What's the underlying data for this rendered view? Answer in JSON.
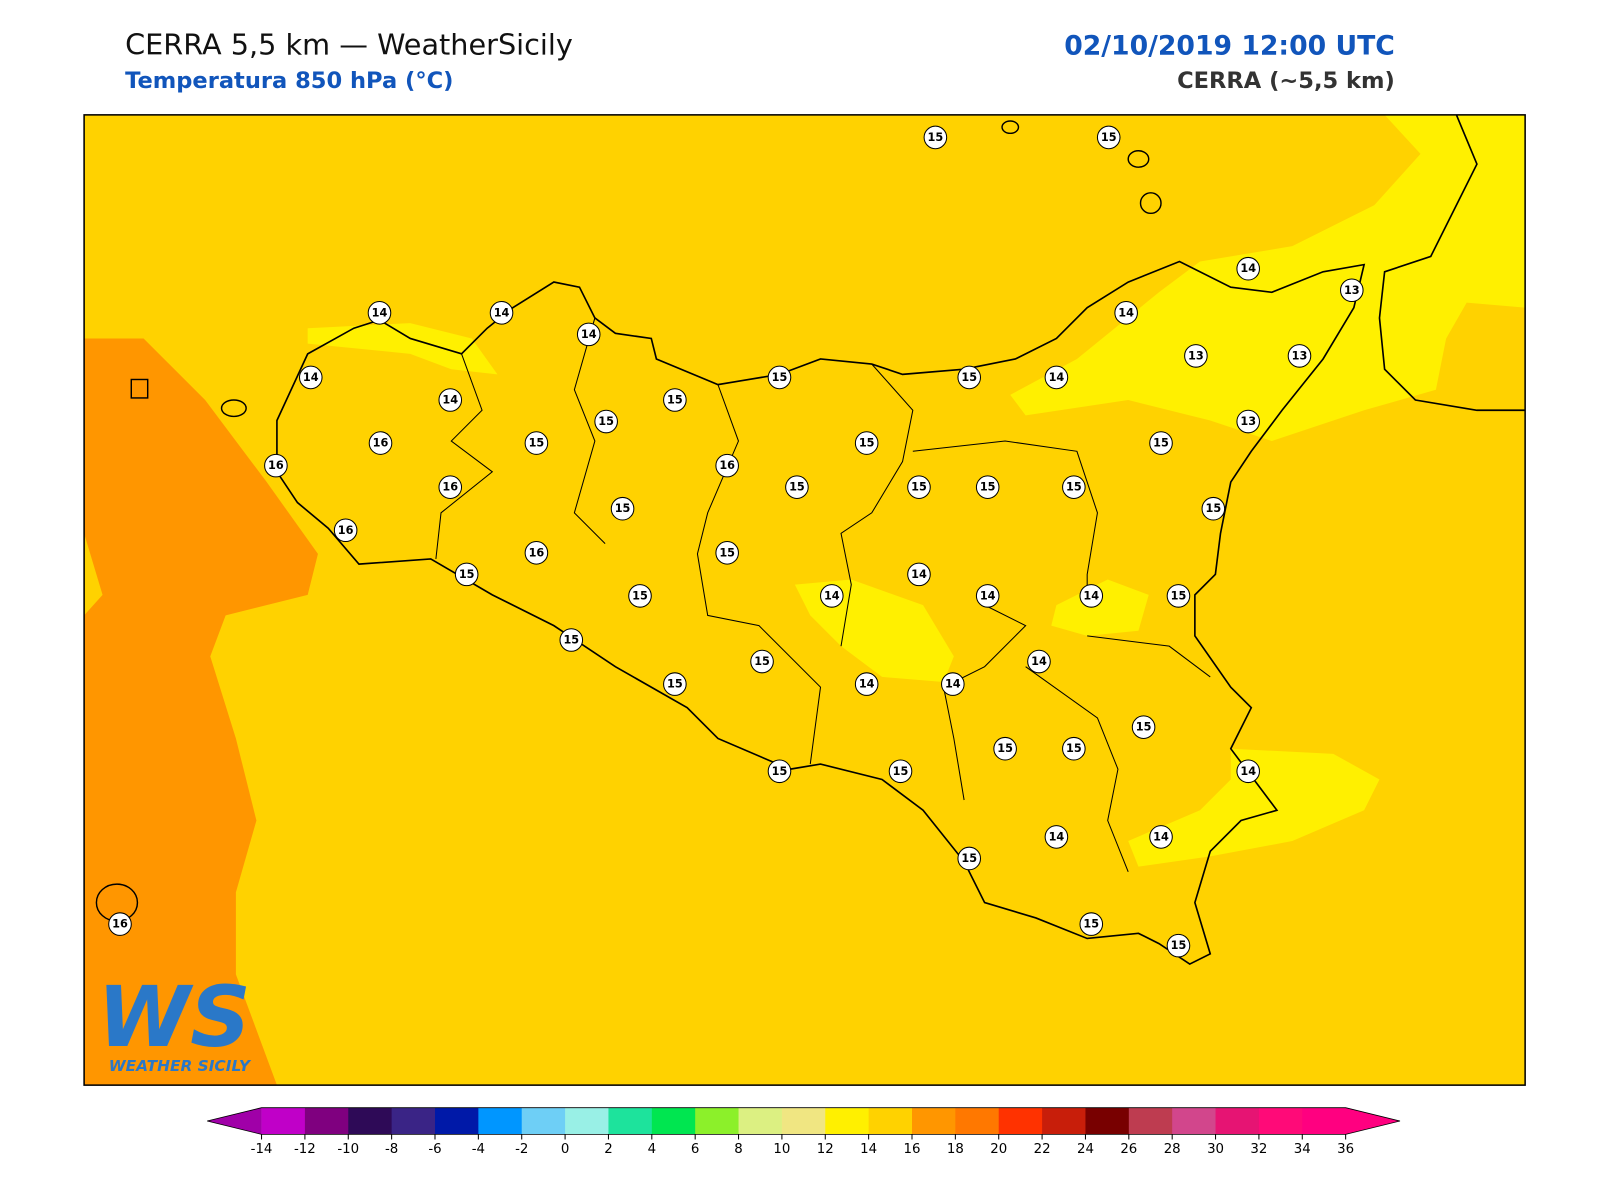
{
  "header": {
    "title": "CERRA 5,5 km — WeatherSicily",
    "subtitle": "Temperatura 850 hPa (°C)",
    "date": "02/10/2019 12:00 UTC",
    "model": "CERRA (~5,5 km)"
  },
  "logo": {
    "text": "WS",
    "caption": "WEATHER SICILY"
  },
  "station_values": [
    15,
    15,
    14,
    13,
    14,
    14,
    14,
    14,
    14,
    15,
    15,
    14,
    13,
    13,
    14,
    15,
    15,
    13,
    16,
    15,
    15,
    15,
    16,
    16,
    16,
    15,
    15,
    15,
    15,
    15,
    15,
    16,
    16,
    15,
    15,
    14,
    15,
    14,
    14,
    14,
    15,
    15,
    15,
    14,
    15,
    14,
    14,
    15,
    15,
    15,
    15,
    15,
    14,
    14,
    14,
    15,
    16,
    15,
    15
  ],
  "colorbar": {
    "ticks": [
      -14,
      -12,
      -10,
      -8,
      -6,
      -4,
      -2,
      0,
      2,
      4,
      6,
      8,
      10,
      12,
      14,
      16,
      18,
      20,
      22,
      24,
      26,
      28,
      30,
      32,
      34,
      36
    ],
    "colors": [
      "#c000c8",
      "#7f007f",
      "#2e0a57",
      "#3a2486",
      "#0019a8",
      "#0096ff",
      "#6ecff6",
      "#99f0e6",
      "#1de39c",
      "#00e650",
      "#8cf02a",
      "#dcf082",
      "#f0e682",
      "#fff000",
      "#ffd200",
      "#ff9600",
      "#ff7800",
      "#ff3200",
      "#c81e0a",
      "#780000",
      "#be3c50",
      "#d2468c",
      "#e61473",
      "#ff0a78",
      "#ff0080"
    ],
    "under_color": "#a000a8",
    "over_color": "#ff0080"
  }
}
